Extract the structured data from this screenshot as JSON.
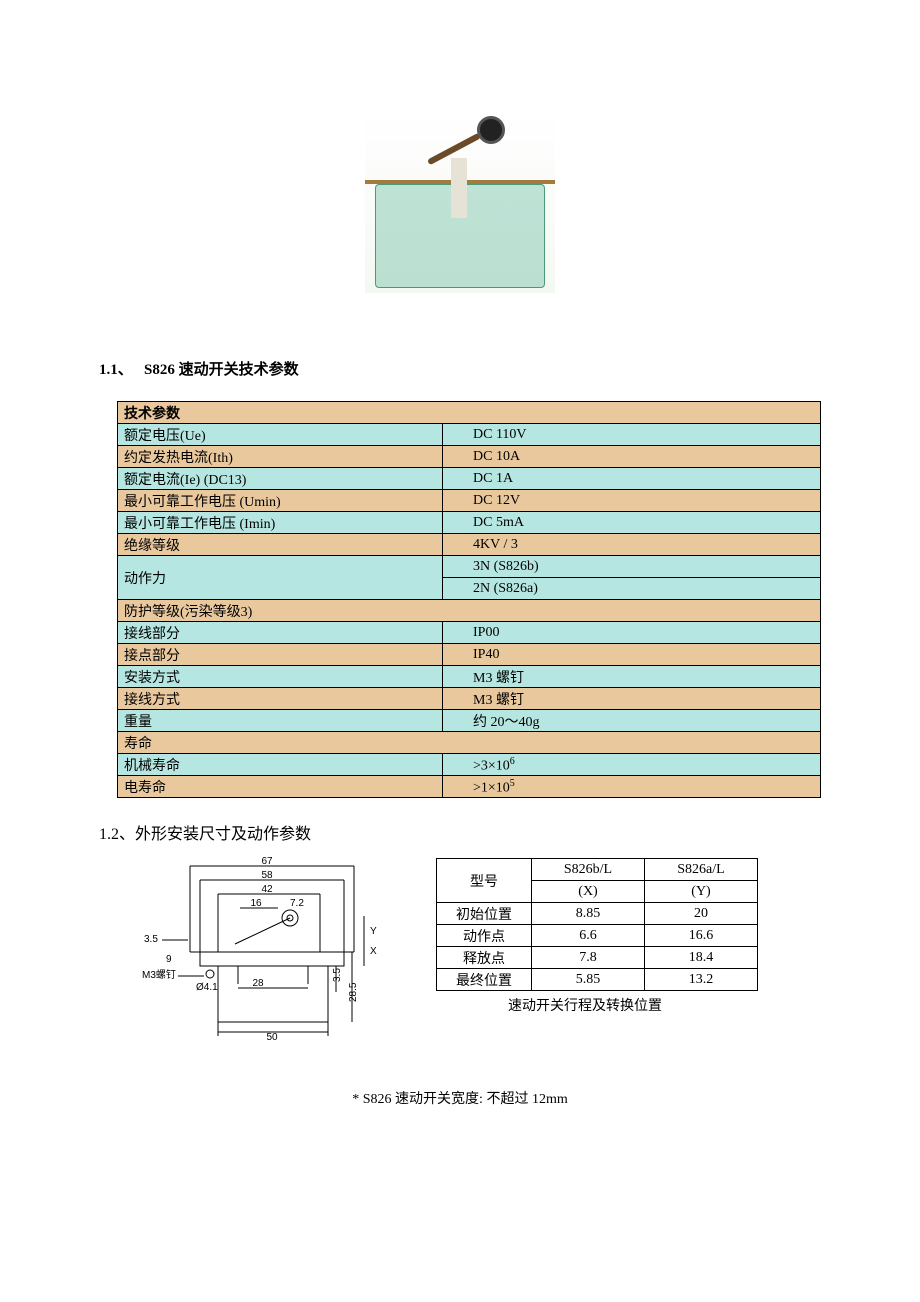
{
  "section1": {
    "number": "1.1、",
    "title": "S826 速动开关技术参数"
  },
  "spec_table": {
    "header": "技术参数",
    "rows": [
      {
        "label": "额定电压(Ue)",
        "value": "DC 110V",
        "class": "cyan"
      },
      {
        "label": "约定发热电流(Ith)",
        "value": "DC 10A",
        "class": "tan"
      },
      {
        "label": "额定电流(Ie)  (DC13)",
        "value": "DC 1A",
        "class": "cyan"
      },
      {
        "label": "最小可靠工作电压 (Umin)",
        "value": "DC 12V",
        "class": "tan"
      },
      {
        "label": "最小可靠工作电压 (Imin)",
        "value": "DC 5mA",
        "class": "cyan"
      },
      {
        "label": "绝缘等级",
        "value": "4KV / 3",
        "class": "tan"
      }
    ],
    "actuation_force": {
      "label": "动作力",
      "value1": "3N (S826b)",
      "value2": "2N (S826a)"
    },
    "protection_header": "防护等级(污染等级3)",
    "rows2": [
      {
        "label": "接线部分",
        "value": "IP00",
        "class": "cyan"
      },
      {
        "label": "接点部分",
        "value": "IP40",
        "class": "tan"
      },
      {
        "label": "安装方式",
        "value": "M3 螺钉",
        "class": "cyan"
      },
      {
        "label": "接线方式",
        "value": "M3 螺钉",
        "class": "tan"
      },
      {
        "label": "重量",
        "value": "约 20～40g",
        "class": "cyan"
      }
    ],
    "life_header": "寿命",
    "mech_life": {
      "label": "机械寿命",
      "value_prefix": ">3×10",
      "value_exp": "6"
    },
    "elec_life": {
      "label": "电寿命",
      "value_prefix": ">1×10",
      "value_exp": "5"
    }
  },
  "section2": {
    "text": "1.2、外形安装尺寸及动作参数"
  },
  "drawing_dims": {
    "d67": "67",
    "d58": "58",
    "d42": "42",
    "d16": "16",
    "d7_2": "7.2",
    "d3_5": "3.5",
    "d9": "9",
    "dM3": "M3螺钉",
    "dphi41": "Ø4.1",
    "d28": "28",
    "d50": "50",
    "d35": "3.5",
    "d285": "28.5",
    "dY": "Y",
    "dX": "X"
  },
  "op_table": {
    "columns": [
      "型号",
      "S826b/L",
      "S826a/L"
    ],
    "col_sub": [
      "",
      "(X)",
      "(Y)"
    ],
    "rows": [
      {
        "label": "初始位置",
        "a": "8.85",
        "b": "20"
      },
      {
        "label": "动作点",
        "a": "6.6",
        "b": "16.6"
      },
      {
        "label": "释放点",
        "a": "7.8",
        "b": "18.4"
      },
      {
        "label": "最终位置",
        "a": "5.85",
        "b": "13.2"
      }
    ],
    "caption": "速动开关行程及转换位置"
  },
  "footnote": "*  S826 速动开关宽度: 不超过 12mm"
}
